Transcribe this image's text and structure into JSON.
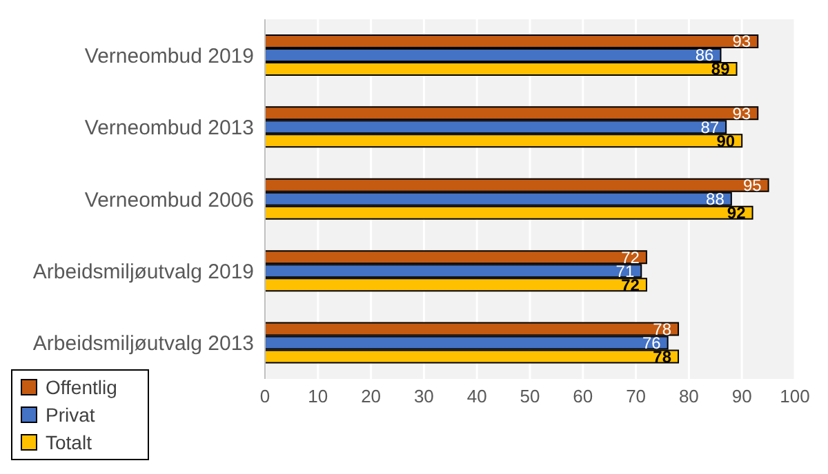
{
  "chart_data": {
    "type": "bar",
    "orientation": "horizontal",
    "categories": [
      "Verneombud 2019",
      "Verneombud 2013",
      "Verneombud 2006",
      "Arbeidsmiljøutvalg 2019",
      "Arbeidsmiljøutvalg 2013"
    ],
    "series": [
      {
        "name": "Offentlig",
        "color": "#c55a11",
        "values": [
          93,
          93,
          95,
          72,
          78
        ]
      },
      {
        "name": "Privat",
        "color": "#4472c4",
        "values": [
          86,
          87,
          88,
          71,
          76
        ]
      },
      {
        "name": "Totalt",
        "color": "#ffc000",
        "values": [
          89,
          90,
          92,
          72,
          78
        ]
      }
    ],
    "xlim": [
      0,
      100
    ],
    "xticks": [
      0,
      10,
      20,
      30,
      40,
      50,
      60,
      70,
      80,
      90,
      100
    ],
    "grid": "x",
    "legend": "bottom left",
    "data_labels": true
  }
}
